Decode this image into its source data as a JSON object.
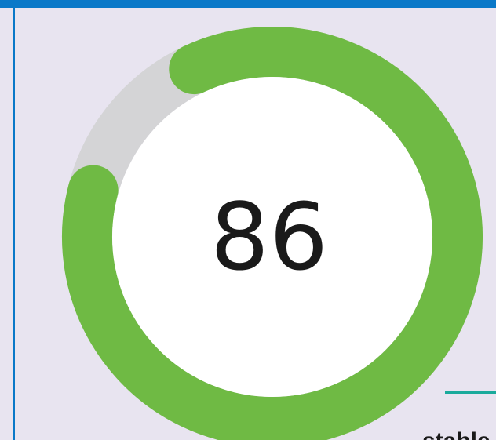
{
  "chart_data": {
    "type": "gauge",
    "value": 86,
    "range": [
      0,
      100
    ],
    "color": "#6fba44",
    "track_color": "#d4d4d6",
    "status": "stable"
  }
}
